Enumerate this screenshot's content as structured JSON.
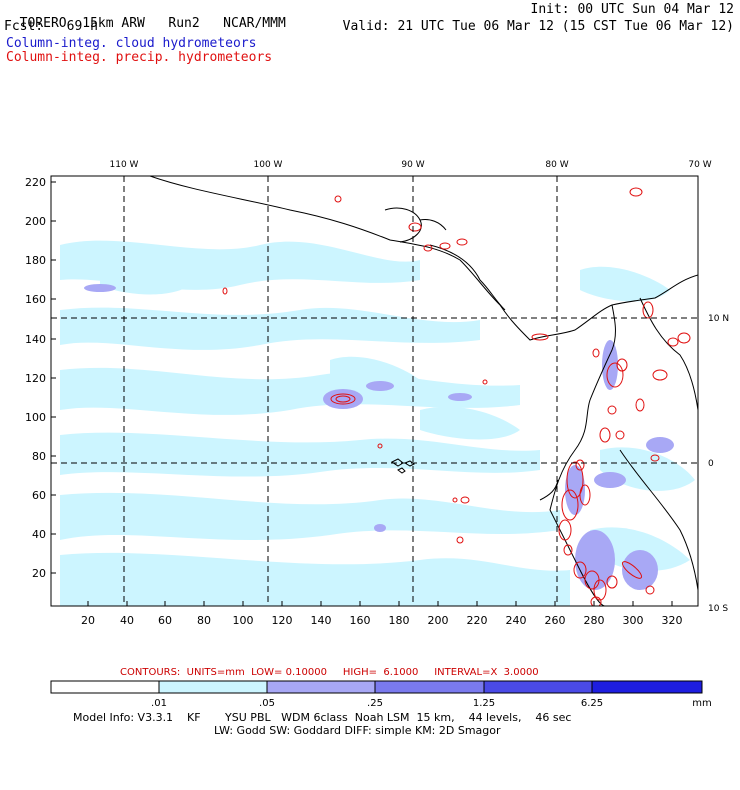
{
  "header": {
    "model": "TORERO  15km ARW",
    "run": "Run2",
    "center": "NCAR/MMM",
    "init": "Init: 00 UTC Sun 04 Mar 12",
    "fcst": "Fcst:   69 h",
    "valid": "Valid: 21 UTC Tue 06 Mar 12 (15 CST Tue 06 Mar 12)",
    "field1": "Column-integ. cloud hydrometeors",
    "field2": "Column-integ. precip. hydrometeors"
  },
  "map": {
    "lon_labels": [
      "110 W",
      "100 W",
      "90 W",
      "80 W",
      "70 W"
    ],
    "lat_labels": [
      "10 N",
      "0",
      "10 S"
    ],
    "y_ticks": [
      "220",
      "200",
      "180",
      "160",
      "140",
      "120",
      "100",
      "80",
      "60",
      "40",
      "20"
    ],
    "x_ticks": [
      "20",
      "40",
      "60",
      "80",
      "100",
      "120",
      "140",
      "160",
      "180",
      "200",
      "220",
      "240",
      "260",
      "280",
      "300",
      "320"
    ],
    "colors": {
      "shade1": "#ccf5ff",
      "shade2": "#a8a8f5",
      "shade3": "#7a7aee",
      "shade4": "#4a4ae6",
      "shade5": "#1e1ee0",
      "precip": "#e01010",
      "coast": "#000000"
    }
  },
  "contours_note": "CONTOURS:  UNITS=mm  LOW= 0.10000     HIGH=  6.1000     INTERVAL=X  3.0000",
  "colorbar": {
    "labels": [
      ".01",
      ".05",
      ".25",
      "1.25",
      "6.25"
    ],
    "unit": "mm"
  },
  "model_info": {
    "line1": "Model Info: V3.3.1    KF       YSU PBL   WDM 6class  Noah LSM  15 km,    44 levels,    46 sec",
    "line2": "LW: Godd SW: Goddard DIFF: simple KM: 2D Smagor"
  }
}
